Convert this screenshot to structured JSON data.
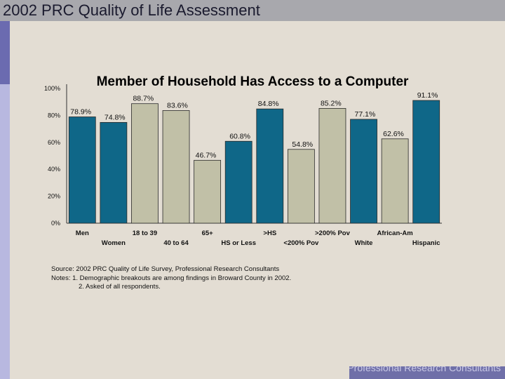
{
  "slide": {
    "title": "2002 PRC Quality of Life Assessment",
    "footer": "Professional Research Consultants"
  },
  "notes": {
    "source": "Source: 2002 PRC Quality of Life Survey, Professional Research Consultants",
    "note1": "Notes:   1. Demographic breakouts are among findings in Broward County in 2002.",
    "note2": "2. Asked of all respondents."
  },
  "colors": {
    "blue": "#0f6788",
    "gray": "#c1c0a7",
    "background": "#e3ddd3"
  },
  "chart_data": {
    "type": "bar",
    "title": "Member of Household Has Access to a Computer",
    "xlabel": "",
    "ylabel": "",
    "ylim": [
      0,
      100
    ],
    "yticks": [
      "0%",
      "20%",
      "40%",
      "60%",
      "80%",
      "100%"
    ],
    "categories": [
      "Men",
      "Women",
      "18 to 39",
      "40 to 64",
      "65+",
      "HS or Less",
      ">HS",
      "<200% Pov",
      ">200% Pov",
      "White",
      "African-Am",
      "Hispanic"
    ],
    "values": [
      78.9,
      74.8,
      88.7,
      83.6,
      46.7,
      60.8,
      84.8,
      54.8,
      85.2,
      77.1,
      62.6,
      91.1
    ],
    "labels": [
      "78.9%",
      "74.8%",
      "88.7%",
      "83.6%",
      "46.7%",
      "60.8%",
      "84.8%",
      "54.8%",
      "85.2%",
      "77.1%",
      "62.6%",
      "91.1%"
    ],
    "bar_colors": [
      "blue",
      "blue",
      "gray",
      "gray",
      "gray",
      "blue",
      "blue",
      "gray",
      "gray",
      "blue",
      "gray",
      "blue"
    ]
  }
}
